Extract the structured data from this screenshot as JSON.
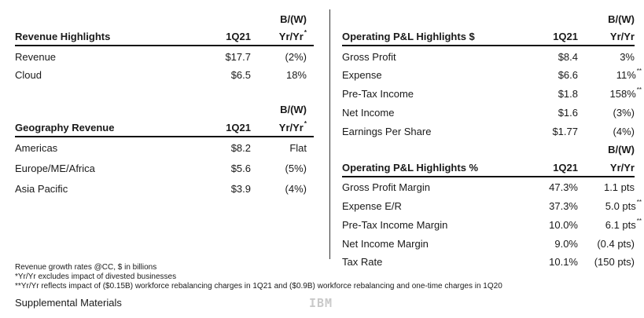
{
  "left": {
    "revenue": {
      "title": "Revenue Highlights",
      "col_period": "1Q21",
      "col_bw": "B/(W)",
      "col_yy": "Yr/Yr",
      "col_yy_mark": "*",
      "rows": [
        {
          "label": "Revenue",
          "value": "$17.7",
          "change": "(2%)"
        },
        {
          "label": "Cloud",
          "value": "$6.5",
          "change": "18%"
        }
      ]
    },
    "geography": {
      "title": "Geography Revenue",
      "col_period": "1Q21",
      "col_bw": "B/(W)",
      "col_yy": "Yr/Yr",
      "col_yy_mark": "*",
      "rows": [
        {
          "label": "Americas",
          "value": "$8.2",
          "change": "Flat"
        },
        {
          "label": "Europe/ME/Africa",
          "value": "$5.6",
          "change": "(5%)"
        },
        {
          "label": "Asia Pacific",
          "value": "$3.9",
          "change": "(4%)"
        }
      ]
    }
  },
  "right": {
    "pl_dollars": {
      "title": "Operating P&L Highlights $",
      "col_period": "1Q21",
      "col_bw": "B/(W)",
      "col_yy": "Yr/Yr",
      "rows": [
        {
          "label": "Gross Profit",
          "value": "$8.4",
          "change": "3%",
          "mark": ""
        },
        {
          "label": "Expense",
          "value": "$6.6",
          "change": "11%",
          "mark": "**"
        },
        {
          "label": "Pre-Tax Income",
          "value": "$1.8",
          "change": "158%",
          "mark": "**"
        },
        {
          "label": "Net Income",
          "value": "$1.6",
          "change": "(3%)",
          "mark": ""
        },
        {
          "label": "Earnings Per Share",
          "value": "$1.77",
          "change": "(4%)",
          "mark": ""
        }
      ]
    },
    "pl_percent": {
      "title": "Operating P&L Highlights %",
      "col_period": "1Q21",
      "col_bw": "B/(W)",
      "col_yy": "Yr/Yr",
      "rows": [
        {
          "label": "Gross Profit Margin",
          "value": "47.3%",
          "change": "1.1 pts",
          "mark": ""
        },
        {
          "label": "Expense E/R",
          "value": "37.3%",
          "change": "5.0 pts",
          "mark": "**"
        },
        {
          "label": "Pre-Tax Income Margin",
          "value": "10.0%",
          "change": "6.1 pts",
          "mark": "**"
        },
        {
          "label": "Net Income Margin",
          "value": "9.0%",
          "change": "(0.4 pts)",
          "mark": ""
        },
        {
          "label": "Tax Rate",
          "value": "10.1%",
          "change": "(150 pts)",
          "mark": ""
        }
      ]
    }
  },
  "footnotes": [
    "Revenue growth rates @CC, $ in billions",
    "*Yr/Yr excludes impact of divested businesses",
    "**Yr/Yr reflects impact of ($0.15B) workforce rebalancing charges in 1Q21 and ($0.9B) workforce rebalancing and one-time charges in 1Q20"
  ],
  "supplemental": "Supplemental Materials",
  "logo": "IBM"
}
